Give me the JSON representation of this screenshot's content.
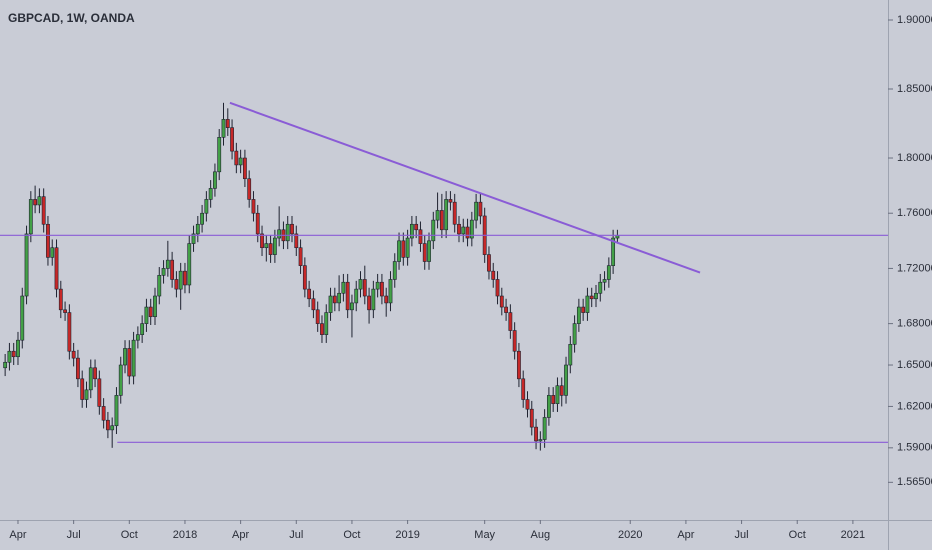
{
  "chart_data": {
    "type": "candlestick",
    "title": "GBPCAD, 1W, OANDA",
    "x": [
      -3,
      -2,
      -1,
      0,
      1,
      2,
      3,
      4,
      5,
      6,
      7,
      8,
      9,
      10,
      11,
      12,
      13,
      14,
      15,
      16,
      17,
      18,
      19,
      20,
      21,
      22,
      23,
      24,
      25,
      26,
      27,
      28,
      29,
      30,
      31,
      32,
      33,
      34,
      35,
      36,
      37,
      38,
      39,
      40,
      41,
      42,
      43,
      44,
      45,
      46,
      47,
      48,
      49,
      50,
      51,
      52,
      53,
      54,
      55,
      56,
      57,
      58,
      59,
      60,
      61,
      62,
      63,
      64,
      65,
      66,
      67,
      68,
      69,
      70,
      71,
      72,
      73,
      74,
      75,
      76,
      77,
      78,
      79,
      80,
      81,
      82,
      83,
      84,
      85,
      86,
      87,
      88,
      89,
      90,
      91,
      92,
      93,
      94,
      95,
      96,
      97,
      98,
      99,
      100,
      101,
      102,
      103,
      104,
      105,
      106,
      107,
      108,
      109,
      110,
      111,
      112,
      113,
      114,
      115,
      116,
      117,
      118,
      119,
      120,
      121,
      122,
      123,
      124,
      125,
      126,
      127,
      128,
      129,
      130,
      131,
      132,
      133,
      134,
      135,
      136,
      137,
      138,
      139,
      140
    ],
    "open": [
      1.648,
      1.652,
      1.66,
      1.656,
      1.668,
      1.7,
      1.745,
      1.77,
      1.766,
      1.772,
      1.752,
      1.728,
      1.735,
      1.705,
      1.69,
      1.688,
      1.66,
      1.655,
      1.64,
      1.625,
      1.632,
      1.648,
      1.64,
      1.62,
      1.61,
      1.603,
      1.606,
      1.628,
      1.65,
      1.662,
      1.642,
      1.668,
      1.672,
      1.68,
      1.692,
      1.685,
      1.7,
      1.715,
      1.72,
      1.726,
      1.712,
      1.705,
      1.718,
      1.708,
      1.738,
      1.745,
      1.752,
      1.76,
      1.77,
      1.778,
      1.79,
      1.815,
      1.828,
      1.822,
      1.805,
      1.795,
      1.8,
      1.785,
      1.77,
      1.76,
      1.745,
      1.735,
      1.738,
      1.73,
      1.742,
      1.748,
      1.74,
      1.752,
      1.745,
      1.735,
      1.722,
      1.705,
      1.698,
      1.69,
      1.68,
      1.672,
      1.688,
      1.7,
      1.695,
      1.702,
      1.71,
      1.69,
      1.695,
      1.705,
      1.712,
      1.7,
      1.69,
      1.705,
      1.71,
      1.7,
      1.695,
      1.712,
      1.725,
      1.74,
      1.728,
      1.742,
      1.752,
      1.748,
      1.738,
      1.725,
      1.74,
      1.755,
      1.762,
      1.748,
      1.77,
      1.768,
      1.752,
      1.745,
      1.75,
      1.742,
      1.755,
      1.768,
      1.758,
      1.73,
      1.718,
      1.712,
      1.7,
      1.692,
      1.688,
      1.675,
      1.66,
      1.64,
      1.625,
      1.618,
      1.605,
      1.595,
      1.596,
      1.612,
      1.628,
      1.622,
      1.635,
      1.628,
      1.65,
      1.665,
      1.68,
      1.692,
      1.688,
      1.7,
      1.698,
      1.702,
      1.71,
      1.712,
      1.722,
      1.742
    ],
    "high": [
      1.658,
      1.666,
      1.666,
      1.674,
      1.706,
      1.751,
      1.776,
      1.78,
      1.778,
      1.778,
      1.758,
      1.741,
      1.741,
      1.711,
      1.696,
      1.694,
      1.666,
      1.661,
      1.646,
      1.638,
      1.654,
      1.654,
      1.646,
      1.626,
      1.616,
      1.612,
      1.634,
      1.656,
      1.668,
      1.668,
      1.674,
      1.678,
      1.686,
      1.698,
      1.698,
      1.706,
      1.721,
      1.726,
      1.74,
      1.732,
      1.718,
      1.724,
      1.724,
      1.744,
      1.751,
      1.758,
      1.766,
      1.776,
      1.784,
      1.796,
      1.821,
      1.84,
      1.836,
      1.828,
      1.811,
      1.806,
      1.806,
      1.791,
      1.776,
      1.766,
      1.751,
      1.744,
      1.744,
      1.748,
      1.765,
      1.754,
      1.758,
      1.758,
      1.751,
      1.741,
      1.728,
      1.711,
      1.704,
      1.696,
      1.686,
      1.694,
      1.706,
      1.706,
      1.715,
      1.716,
      1.716,
      1.701,
      1.711,
      1.718,
      1.722,
      1.706,
      1.711,
      1.716,
      1.716,
      1.706,
      1.718,
      1.731,
      1.746,
      1.746,
      1.748,
      1.758,
      1.758,
      1.754,
      1.744,
      1.746,
      1.761,
      1.775,
      1.774,
      1.776,
      1.776,
      1.774,
      1.758,
      1.756,
      1.756,
      1.761,
      1.774,
      1.774,
      1.764,
      1.736,
      1.724,
      1.718,
      1.706,
      1.698,
      1.694,
      1.681,
      1.666,
      1.646,
      1.631,
      1.624,
      1.611,
      1.602,
      1.618,
      1.634,
      1.634,
      1.641,
      1.641,
      1.656,
      1.671,
      1.686,
      1.698,
      1.698,
      1.706,
      1.706,
      1.708,
      1.716,
      1.718,
      1.728,
      1.748,
      1.748
    ],
    "low": [
      1.642,
      1.646,
      1.65,
      1.65,
      1.662,
      1.694,
      1.739,
      1.76,
      1.76,
      1.746,
      1.722,
      1.722,
      1.699,
      1.684,
      1.682,
      1.654,
      1.649,
      1.634,
      1.619,
      1.619,
      1.626,
      1.634,
      1.614,
      1.604,
      1.597,
      1.59,
      1.6,
      1.622,
      1.644,
      1.636,
      1.636,
      1.662,
      1.666,
      1.674,
      1.679,
      1.679,
      1.694,
      1.709,
      1.714,
      1.706,
      1.699,
      1.69,
      1.702,
      1.702,
      1.732,
      1.739,
      1.746,
      1.754,
      1.764,
      1.772,
      1.784,
      1.809,
      1.816,
      1.799,
      1.789,
      1.789,
      1.779,
      1.764,
      1.754,
      1.739,
      1.729,
      1.725,
      1.724,
      1.724,
      1.736,
      1.734,
      1.734,
      1.739,
      1.729,
      1.716,
      1.699,
      1.692,
      1.684,
      1.674,
      1.666,
      1.666,
      1.682,
      1.689,
      1.689,
      1.696,
      1.684,
      1.67,
      1.689,
      1.699,
      1.694,
      1.68,
      1.684,
      1.699,
      1.694,
      1.685,
      1.689,
      1.706,
      1.719,
      1.722,
      1.722,
      1.736,
      1.742,
      1.732,
      1.719,
      1.719,
      1.734,
      1.749,
      1.742,
      1.742,
      1.762,
      1.746,
      1.739,
      1.739,
      1.736,
      1.736,
      1.749,
      1.752,
      1.724,
      1.712,
      1.706,
      1.694,
      1.686,
      1.682,
      1.669,
      1.654,
      1.634,
      1.619,
      1.612,
      1.599,
      1.589,
      1.588,
      1.59,
      1.606,
      1.616,
      1.616,
      1.62,
      1.622,
      1.644,
      1.659,
      1.674,
      1.682,
      1.682,
      1.692,
      1.692,
      1.696,
      1.704,
      1.706,
      1.716,
      1.738
    ],
    "close": [
      1.652,
      1.66,
      1.656,
      1.668,
      1.7,
      1.745,
      1.77,
      1.766,
      1.772,
      1.752,
      1.728,
      1.735,
      1.705,
      1.69,
      1.688,
      1.66,
      1.655,
      1.64,
      1.625,
      1.632,
      1.648,
      1.64,
      1.62,
      1.61,
      1.603,
      1.606,
      1.628,
      1.65,
      1.662,
      1.642,
      1.668,
      1.672,
      1.68,
      1.692,
      1.685,
      1.7,
      1.715,
      1.72,
      1.726,
      1.712,
      1.705,
      1.718,
      1.708,
      1.738,
      1.745,
      1.752,
      1.76,
      1.77,
      1.778,
      1.79,
      1.815,
      1.828,
      1.822,
      1.805,
      1.795,
      1.8,
      1.785,
      1.77,
      1.76,
      1.745,
      1.735,
      1.738,
      1.73,
      1.742,
      1.748,
      1.74,
      1.752,
      1.745,
      1.735,
      1.722,
      1.705,
      1.698,
      1.69,
      1.68,
      1.672,
      1.688,
      1.7,
      1.695,
      1.702,
      1.71,
      1.69,
      1.695,
      1.705,
      1.712,
      1.7,
      1.69,
      1.705,
      1.71,
      1.7,
      1.695,
      1.712,
      1.725,
      1.74,
      1.728,
      1.742,
      1.752,
      1.748,
      1.738,
      1.725,
      1.74,
      1.755,
      1.762,
      1.748,
      1.77,
      1.768,
      1.752,
      1.745,
      1.75,
      1.742,
      1.755,
      1.768,
      1.758,
      1.73,
      1.718,
      1.712,
      1.7,
      1.692,
      1.688,
      1.675,
      1.66,
      1.64,
      1.625,
      1.618,
      1.605,
      1.595,
      1.596,
      1.612,
      1.628,
      1.622,
      1.635,
      1.628,
      1.65,
      1.665,
      1.68,
      1.692,
      1.688,
      1.7,
      1.698,
      1.702,
      1.71,
      1.712,
      1.722,
      1.742,
      1.744
    ],
    "up_color": "#43a047",
    "down_color": "#c62828",
    "xlim": [
      -4.2,
      203.2
    ],
    "xticks": [
      {
        "value": 0,
        "label": "Apr"
      },
      {
        "value": 13,
        "label": "Jul"
      },
      {
        "value": 26,
        "label": "Oct"
      },
      {
        "value": 39,
        "label": "2018"
      },
      {
        "value": 52,
        "label": "Apr"
      },
      {
        "value": 65,
        "label": "Jul"
      },
      {
        "value": 78,
        "label": "Oct"
      },
      {
        "value": 91,
        "label": "2019"
      },
      {
        "value": 109,
        "label": "May"
      },
      {
        "value": 122,
        "label": "Aug"
      },
      {
        "value": 143,
        "label": "2020"
      },
      {
        "value": 156,
        "label": "Apr"
      },
      {
        "value": 169,
        "label": "Jul"
      },
      {
        "value": 182,
        "label": "Oct"
      },
      {
        "value": 195,
        "label": "2021"
      }
    ],
    "ylim": [
      1.5377,
      1.9145
    ],
    "yticks": [
      {
        "value": 1.9,
        "label": "1.90000"
      },
      {
        "value": 1.85,
        "label": "1.85000"
      },
      {
        "value": 1.8,
        "label": "1.80000"
      },
      {
        "value": 1.76,
        "label": "1.76000"
      },
      {
        "value": 1.72,
        "label": "1.72000"
      },
      {
        "value": 1.68,
        "label": "1.68000"
      },
      {
        "value": 1.65,
        "label": "1.65000"
      },
      {
        "value": 1.62,
        "label": "1.62000"
      },
      {
        "value": 1.59,
        "label": "1.59000"
      },
      {
        "value": 1.565,
        "label": "1.56500"
      }
    ],
    "lines": [
      {
        "x": [
          49.5,
          159.3
        ],
        "y": [
          1.84,
          1.717
        ],
        "color": "#8a5cd6"
      },
      {
        "x": [
          -4.2,
          203.2
        ],
        "y": [
          1.744,
          1.744
        ],
        "color": "#8a5cd6"
      },
      {
        "x": [
          23.2,
          203.2
        ],
        "y": [
          1.594,
          1.594
        ],
        "color": "#8a5cd6"
      }
    ]
  }
}
